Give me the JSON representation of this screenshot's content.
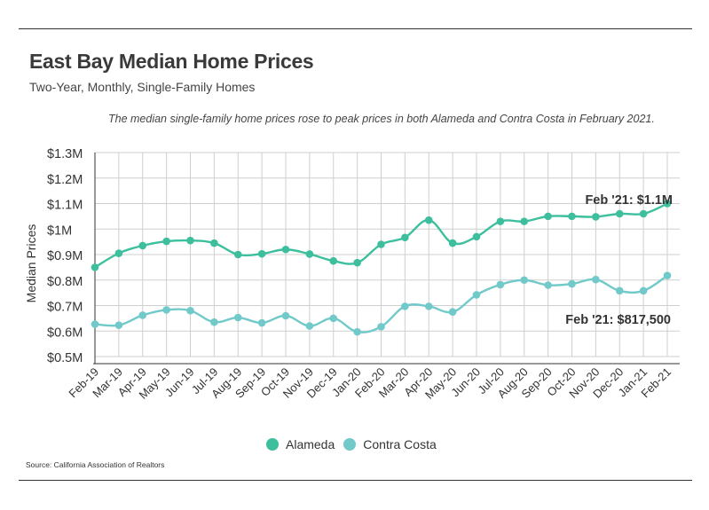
{
  "header": {
    "title": "East Bay Median Home Prices",
    "subtitle": "Two-Year, Monthly, Single-Family Homes",
    "note": "The median single-family home prices rose to peak prices in both Alameda and Contra Costa in February 2021."
  },
  "footer": {
    "source": "Source:  California Association of Realtors"
  },
  "colors": {
    "alameda": "#3dbf9e",
    "contra_costa": "#72c9c9",
    "grid": "#cfcfcf",
    "axis": "#333333"
  },
  "chart_data": {
    "type": "line",
    "title": "East Bay Median Home Prices",
    "subtitle": "Two-Year, Monthly, Single-Family Homes",
    "xlabel": "",
    "ylabel": "Median Prices",
    "ylim": [
      500000,
      1300000
    ],
    "yticks": [
      500000,
      600000,
      700000,
      800000,
      900000,
      1000000,
      1100000,
      1200000,
      1300000
    ],
    "ytick_labels": [
      "$0.5M",
      "$0.6M",
      "$0.7M",
      "$0.8M",
      "$0.9M",
      "$1M",
      "$1.1M",
      "$1.2M",
      "$1.3M"
    ],
    "grid": true,
    "legend_position": "bottom-center",
    "categories": [
      "Feb-19",
      "Mar-19",
      "Apr-19",
      "May-19",
      "Jun-19",
      "Jul-19",
      "Aug-19",
      "Sep-19",
      "Oct-19",
      "Nov-19",
      "Dec-19",
      "Jan-20",
      "Feb-20",
      "Mar-20",
      "Apr-20",
      "May-20",
      "Jun-20",
      "Jul-20",
      "Aug-20",
      "Sep-20",
      "Oct-20",
      "Nov-20",
      "Dec-20",
      "Jan-21",
      "Feb-21"
    ],
    "series": [
      {
        "name": "Alameda",
        "color": "#3dbf9e",
        "values": [
          850000,
          905000,
          935000,
          952000,
          955000,
          945000,
          900000,
          903000,
          920000,
          902000,
          875000,
          868000,
          940000,
          967000,
          1035000,
          945000,
          970000,
          1030000,
          1030000,
          1050000,
          1050000,
          1048000,
          1060000,
          1060000,
          1100000
        ]
      },
      {
        "name": "Contra Costa",
        "color": "#72c9c9",
        "values": [
          627000,
          623000,
          662000,
          683000,
          680000,
          635000,
          653000,
          632000,
          660000,
          620000,
          650000,
          597000,
          617000,
          697000,
          697000,
          675000,
          742000,
          782000,
          800000,
          780000,
          785000,
          802000,
          758000,
          758000,
          817500
        ]
      }
    ],
    "annotations": [
      {
        "series": "Alameda",
        "category": "Feb-21",
        "text": "Feb '21: $1.1M"
      },
      {
        "series": "Contra Costa",
        "category": "Feb-21",
        "text": "Feb '21: $817,500"
      }
    ]
  }
}
